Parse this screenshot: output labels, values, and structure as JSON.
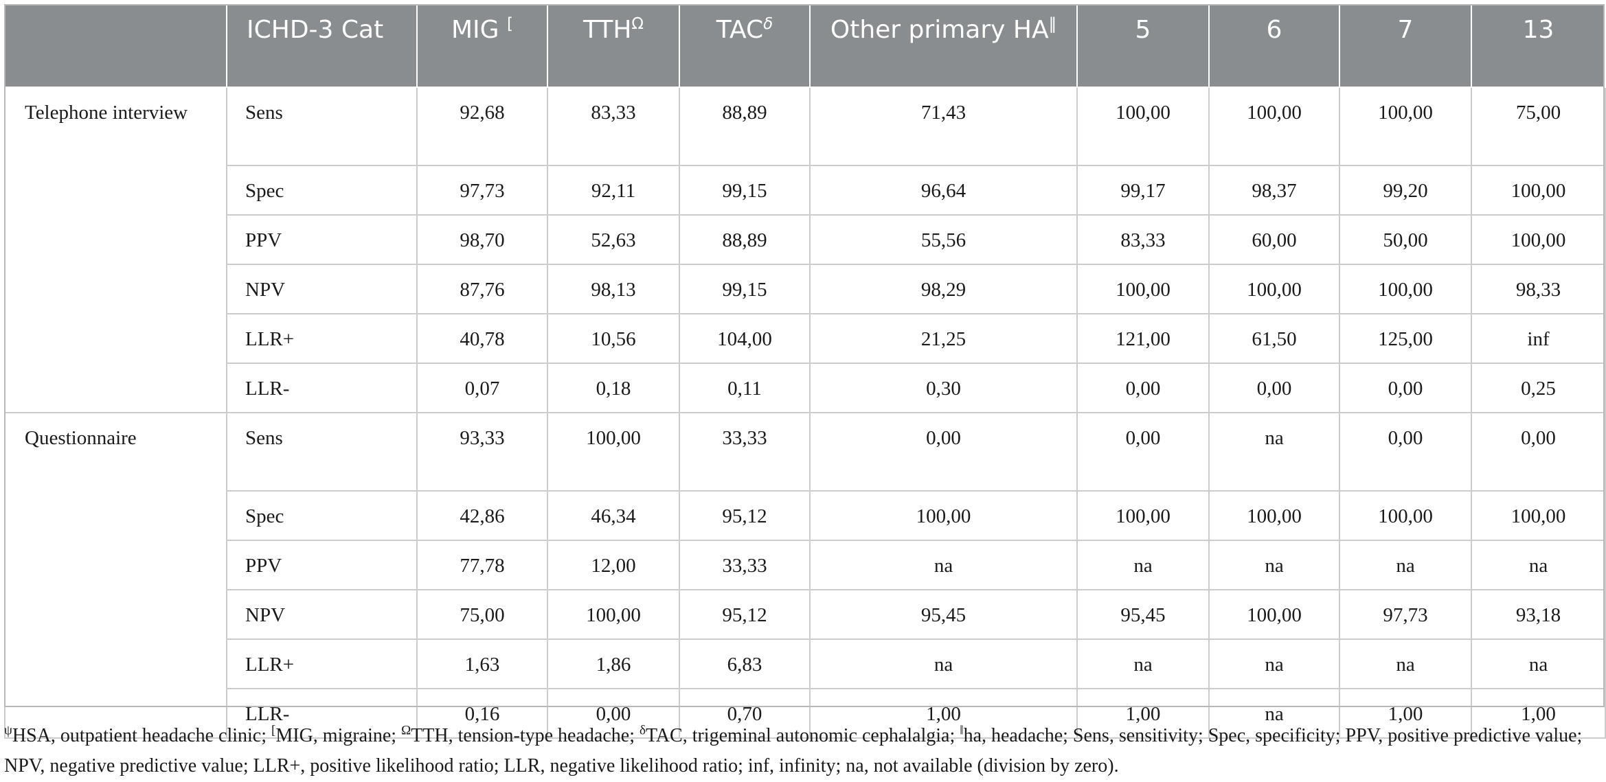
{
  "table": {
    "header": {
      "blank": "",
      "cat": "ICHD-3 Cat",
      "mig": "MIG",
      "mig_sup": "[",
      "tth": "TTH",
      "tth_sup": "Ω",
      "tac": "TAC",
      "tac_sup": "δ",
      "other": "Other primary HA",
      "other_sup": "‖",
      "c5": "5",
      "c6": "6",
      "c7": "7",
      "c13": "13"
    },
    "groups": [
      {
        "label": "Telephone interview",
        "rows": [
          {
            "metric": "Sens",
            "v": [
              "92,68",
              "83,33",
              "88,89",
              "71,43",
              "100,00",
              "100,00",
              "100,00",
              "75,00"
            ]
          },
          {
            "metric": "Spec",
            "v": [
              "97,73",
              "92,11",
              "99,15",
              "96,64",
              "99,17",
              "98,37",
              "99,20",
              "100,00"
            ]
          },
          {
            "metric": "PPV",
            "v": [
              "98,70",
              "52,63",
              "88,89",
              "55,56",
              "83,33",
              "60,00",
              "50,00",
              "100,00"
            ]
          },
          {
            "metric": "NPV",
            "v": [
              "87,76",
              "98,13",
              "99,15",
              "98,29",
              "100,00",
              "100,00",
              "100,00",
              "98,33"
            ]
          },
          {
            "metric": "LLR+",
            "v": [
              "40,78",
              "10,56",
              "104,00",
              "21,25",
              "121,00",
              "61,50",
              "125,00",
              "inf"
            ]
          },
          {
            "metric": "LLR-",
            "v": [
              "0,07",
              "0,18",
              "0,11",
              "0,30",
              "0,00",
              "0,00",
              "0,00",
              "0,25"
            ]
          }
        ]
      },
      {
        "label": "Questionnaire",
        "rows": [
          {
            "metric": "Sens",
            "v": [
              "93,33",
              "100,00",
              "33,33",
              "0,00",
              "0,00",
              "na",
              "0,00",
              "0,00"
            ]
          },
          {
            "metric": "Spec",
            "v": [
              "42,86",
              "46,34",
              "95,12",
              "100,00",
              "100,00",
              "100,00",
              "100,00",
              "100,00"
            ]
          },
          {
            "metric": "PPV",
            "v": [
              "77,78",
              "12,00",
              "33,33",
              "na",
              "na",
              "na",
              "na",
              "na"
            ]
          },
          {
            "metric": "NPV",
            "v": [
              "75,00",
              "100,00",
              "95,12",
              "95,45",
              "95,45",
              "100,00",
              "97,73",
              "93,18"
            ]
          },
          {
            "metric": "LLR+",
            "v": [
              "1,63",
              "1,86",
              "6,83",
              "na",
              "na",
              "na",
              "na",
              "na"
            ]
          },
          {
            "metric": "LLR-",
            "v": [
              "0,16",
              "0,00",
              "0,70",
              "1,00",
              "1,00",
              "na",
              "1,00",
              "1,00"
            ]
          }
        ]
      }
    ]
  },
  "footnote": {
    "psi": "ψ",
    "hsa": "HSA, outpatient headache clinic; ",
    "mig_sym": "[",
    "mig": "MIG, migraine; ",
    "tth_sym": "Ω",
    "tth": "TTH, tension-type headache; ",
    "tac_sym": "δ",
    "tac": "TAC, trigeminal autonomic cephalalgia; ",
    "ha_sym": "‖",
    "rest": "ha, headache; Sens, sensitivity; Spec, specificity; PPV, positive predictive value; NPV, negative predictive value; LLR+, positive likelihood ratio; LLR, negative likelihood ratio; inf, infinity; na, not available (division by zero)."
  },
  "colors": {
    "header_bg": "#8a8d8f",
    "header_text": "#ffffff",
    "grid": "#cccccc",
    "text": "#1a1a1a"
  }
}
